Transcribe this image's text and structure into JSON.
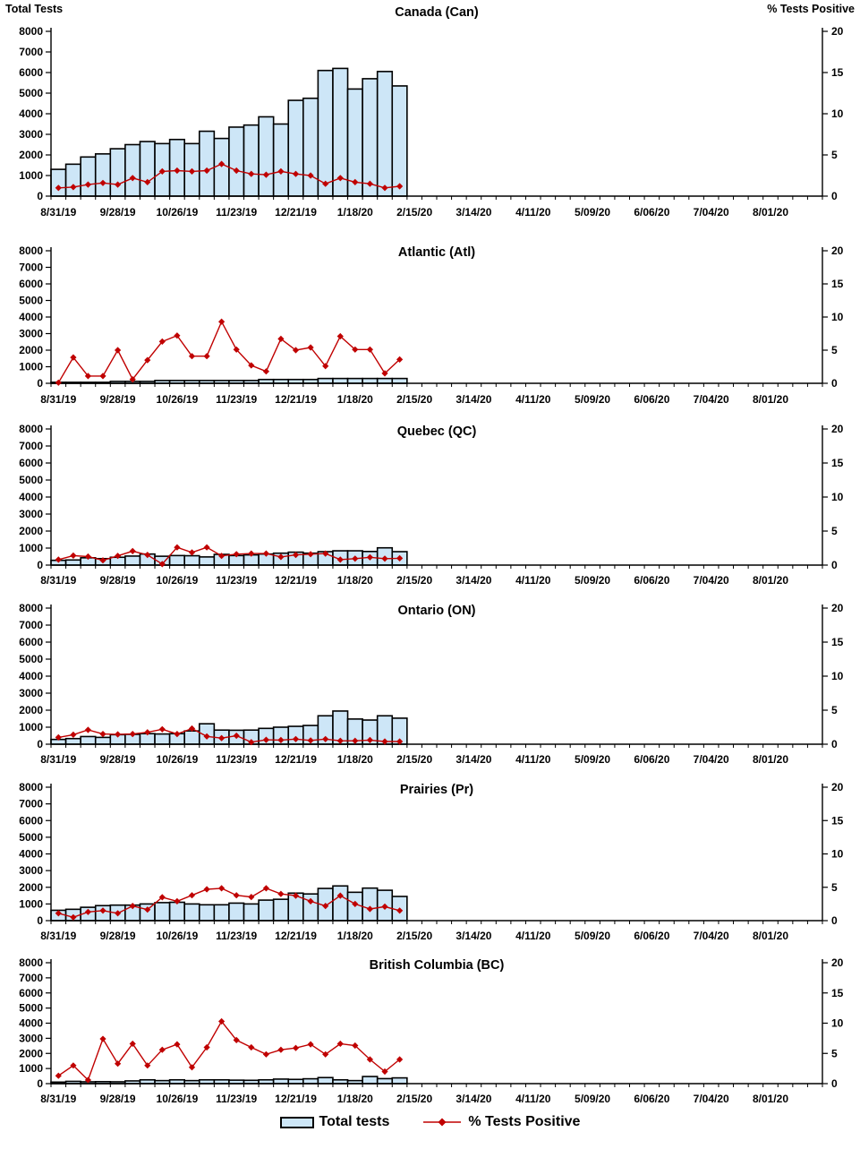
{
  "chart_data": {
    "type": "combo-bar-line",
    "x_tick_labels": [
      "8/31/19",
      "9/28/19",
      "10/26/19",
      "11/23/19",
      "12/21/19",
      "1/18/20",
      "2/15/20",
      "3/14/20",
      "4/11/20",
      "5/09/20",
      "6/06/20",
      "7/04/20",
      "8/01/20"
    ],
    "x_total_week_slots": 52,
    "x_label_every_n_weeks": 4,
    "data_weeks": 24,
    "grid": false,
    "left_axis": {
      "label": "Total Tests",
      "min": 0,
      "max": 8000,
      "step": 1000
    },
    "right_axis": {
      "label": "% Tests Positive",
      "min": 0,
      "max": 20,
      "step": 5
    },
    "legend": {
      "bar_label": "Total tests",
      "line_label": "% Tests Positive"
    },
    "colors": {
      "bar_fill": "#CDE6F7",
      "bar_border": "#000000",
      "line_color": "#C00000",
      "axis_color": "#000000"
    },
    "charts": [
      {
        "id": "canada-can",
        "title": "Canada (Can)",
        "series": [
          {
            "name": "Total tests",
            "type": "bar",
            "axis": "left",
            "values": [
              1300,
              1550,
              1900,
              2050,
              2300,
              2500,
              2650,
              2550,
              2750,
              2550,
              3150,
              2800,
              3350,
              3450,
              3850,
              3500,
              4650,
              4750,
              6100,
              6200,
              5200,
              5700,
              6050,
              5350
            ]
          },
          {
            "name": "% Tests Positive",
            "type": "line",
            "axis": "right",
            "values": [
              1.0,
              1.1,
              1.4,
              1.6,
              1.4,
              2.2,
              1.7,
              3.0,
              3.1,
              3.0,
              3.1,
              3.9,
              3.1,
              2.7,
              2.6,
              3.0,
              2.7,
              2.5,
              1.5,
              2.2,
              1.7,
              1.5,
              1.0,
              1.2
            ]
          }
        ]
      },
      {
        "id": "atlantic-atl",
        "title": "Atlantic (Atl)",
        "series": [
          {
            "name": "Total tests",
            "type": "bar",
            "axis": "left",
            "values": [
              60,
              60,
              60,
              60,
              115,
              115,
              115,
              170,
              170,
              170,
              170,
              170,
              170,
              170,
              230,
              230,
              230,
              230,
              290,
              290,
              290,
              290,
              290,
              290
            ]
          },
          {
            "name": "% Tests Positive",
            "type": "line",
            "axis": "right",
            "values": [
              0.1,
              3.9,
              1.1,
              1.1,
              5.0,
              0.6,
              3.5,
              6.3,
              7.2,
              4.1,
              4.1,
              9.3,
              5.1,
              2.7,
              1.8,
              6.7,
              5.0,
              5.4,
              2.6,
              7.1,
              5.1,
              5.1,
              1.5,
              3.6
            ]
          }
        ]
      },
      {
        "id": "quebec-qc",
        "title": "Quebec (QC)",
        "series": [
          {
            "name": "Total tests",
            "type": "bar",
            "axis": "left",
            "values": [
              280,
              300,
              430,
              380,
              460,
              530,
              650,
              520,
              560,
              550,
              480,
              630,
              560,
              600,
              650,
              700,
              760,
              700,
              790,
              840,
              840,
              800,
              1015,
              790
            ]
          },
          {
            "name": "% Tests Positive",
            "type": "line",
            "axis": "right",
            "values": [
              0.8,
              1.4,
              1.25,
              0.7,
              1.35,
              2.05,
              1.5,
              0.15,
              2.6,
              1.85,
              2.6,
              1.35,
              1.6,
              1.7,
              1.7,
              1.2,
              1.5,
              1.6,
              1.7,
              0.8,
              0.95,
              1.15,
              0.95,
              1.0
            ]
          }
        ]
      },
      {
        "id": "ontario-on",
        "title": "Ontario (ON)",
        "series": [
          {
            "name": "Total tests",
            "type": "bar",
            "axis": "left",
            "values": [
              280,
              330,
              450,
              400,
              560,
              580,
              620,
              600,
              620,
              780,
              1200,
              830,
              820,
              830,
              930,
              1000,
              1050,
              1100,
              1670,
              1950,
              1480,
              1420,
              1670,
              1530
            ]
          },
          {
            "name": "% Tests Positive",
            "type": "line",
            "axis": "right",
            "values": [
              1.0,
              1.4,
              2.1,
              1.5,
              1.45,
              1.5,
              1.75,
              2.2,
              1.5,
              2.3,
              1.15,
              0.9,
              1.25,
              0.3,
              0.65,
              0.6,
              0.75,
              0.55,
              0.75,
              0.5,
              0.5,
              0.6,
              0.4,
              0.4
            ]
          }
        ]
      },
      {
        "id": "prairies-pr",
        "title": "Prairies (Pr)",
        "series": [
          {
            "name": "Total tests",
            "type": "bar",
            "axis": "left",
            "values": [
              620,
              680,
              800,
              900,
              930,
              930,
              1000,
              1080,
              1100,
              1000,
              950,
              950,
              1050,
              1000,
              1230,
              1280,
              1650,
              1600,
              1930,
              2080,
              1700,
              1950,
              1820,
              1450
            ]
          },
          {
            "name": "% Tests Positive",
            "type": "line",
            "axis": "right",
            "values": [
              1.1,
              0.5,
              1.3,
              1.5,
              1.1,
              2.2,
              1.65,
              3.5,
              2.9,
              3.8,
              4.7,
              4.85,
              3.8,
              3.55,
              4.85,
              4.0,
              3.75,
              2.9,
              2.2,
              3.75,
              2.5,
              1.75,
              2.1,
              1.5
            ]
          }
        ]
      },
      {
        "id": "british-columbia-bc",
        "title": "British Columbia (BC)",
        "series": [
          {
            "name": "Total tests",
            "type": "bar",
            "axis": "left",
            "values": [
              100,
              150,
              120,
              130,
              120,
              180,
              250,
              200,
              250,
              200,
              250,
              250,
              230,
              220,
              250,
              300,
              280,
              320,
              400,
              250,
              200,
              470,
              330,
              380
            ]
          },
          {
            "name": "% Tests Positive",
            "type": "line",
            "axis": "right",
            "values": [
              1.3,
              3.0,
              0.6,
              7.4,
              3.3,
              6.6,
              3.0,
              5.6,
              6.5,
              2.7,
              6.0,
              10.3,
              7.2,
              6.0,
              4.85,
              5.6,
              5.9,
              6.5,
              4.85,
              6.6,
              6.3,
              4.0,
              2.0,
              4.0
            ]
          }
        ]
      }
    ]
  }
}
